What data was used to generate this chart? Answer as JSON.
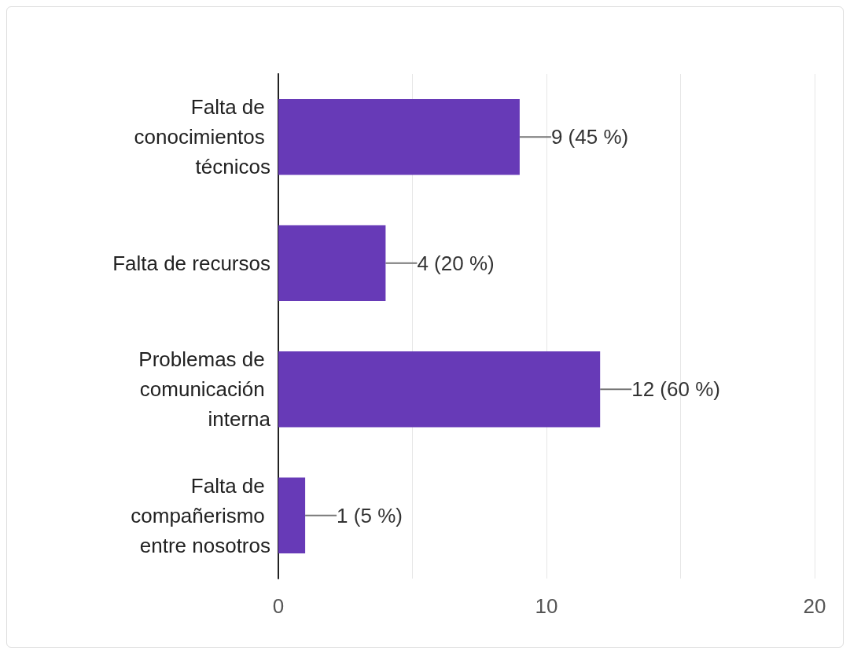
{
  "chart_data": {
    "type": "bar",
    "orientation": "horizontal",
    "categories": [
      "Falta de conocimientos técnicos",
      "Falta de recursos",
      "Problemas de comunicación interna",
      "Falta de compañerismo entre nosotros"
    ],
    "values": [
      9,
      4,
      12,
      1
    ],
    "color": "#673ab7",
    "value_labels": [
      "9 (45 %)",
      "4 (20 %)",
      "12 (60 %)",
      "1 (5 %)"
    ],
    "xlim": [
      0,
      20
    ],
    "xticks": [
      0,
      {
        "value": 5,
        "label": null
      },
      10,
      {
        "value": 15,
        "label": null
      },
      20
    ],
    "grid": "x"
  }
}
